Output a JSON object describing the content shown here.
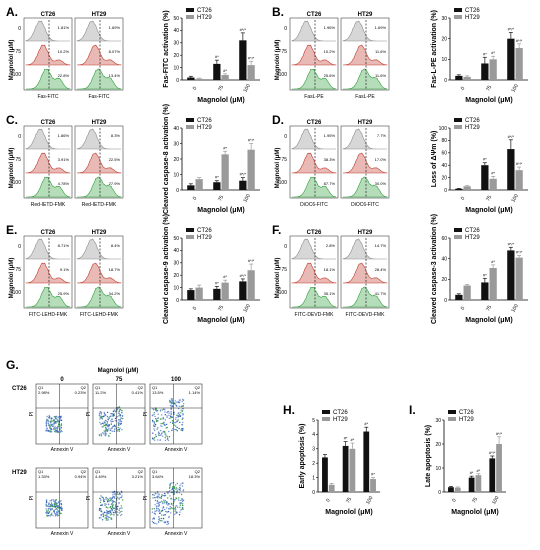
{
  "panel_labels": {
    "A": "A.",
    "B": "B.",
    "C": "C.",
    "D": "D.",
    "E": "E.",
    "F": "F.",
    "G": "G.",
    "H": "H.",
    "I": "I."
  },
  "common": {
    "ct26": "CT26",
    "ht29": "HT29",
    "magnolol": "Magnolol (μM)",
    "magnolol_axis": "Magnolol (μM)",
    "doses": [
      "0",
      "75",
      "100"
    ],
    "star": "#*",
    "star2": "#*/*"
  },
  "colors": {
    "ct26": "#111111",
    "ht29": "#9a9a9a",
    "gray_hist": "#8c8c8c",
    "red_hist": "#c0392b",
    "green_hist": "#2e9e3a"
  },
  "flow_panels": [
    {
      "id": "A",
      "xlabel": "Fas-FITC",
      "pct_ct26": [
        "1.81%",
        "10.2%",
        "22.8%"
      ],
      "pct_ht29": [
        "1.69%",
        "8.07%",
        "13.4%"
      ]
    },
    {
      "id": "B",
      "xlabel": "FasL-PE",
      "pct_ct26": [
        "1.96%",
        "10.2%",
        "25.6%"
      ],
      "pct_ht29": [
        "1.69%",
        "11.6%",
        "11.6%"
      ]
    },
    {
      "id": "C",
      "xlabel": "Red-IETD-FMK",
      "pct_ct26": [
        "1.86%",
        "3.91%",
        "4.78%"
      ],
      "pct_ht29": [
        "8.3%",
        "22.5%",
        "27.9%"
      ]
    },
    {
      "id": "D",
      "xlabel": "DiOC6-FITC",
      "pct_ct26": [
        "1.95%",
        "38.3%",
        "87.7%"
      ],
      "pct_ht29": [
        "7.7%",
        "17.0%",
        "30.0%"
      ]
    },
    {
      "id": "E",
      "xlabel": "FITC-LEHD-FMK",
      "pct_ct26": [
        "8.71%",
        "9.1%",
        "25.9%"
      ],
      "pct_ht29": [
        "8.4%",
        "18.7%",
        "34.2%"
      ]
    },
    {
      "id": "F",
      "xlabel": "FITC-DEVD-FMK",
      "pct_ct26": [
        "2.8%",
        "18.1%",
        "35.1%"
      ],
      "pct_ht29": [
        "14.7%",
        "28.4%",
        "41.7%"
      ]
    }
  ],
  "quad_panel": {
    "title": "Magnolol (μM)",
    "cols": [
      "0",
      "75",
      "100"
    ],
    "rows": [
      "CT26",
      "HT29"
    ],
    "xaxis": "Annexin V",
    "yaxis": "PI",
    "quads": [
      [
        [
          "Q1",
          "Q2",
          "2.98%",
          "0.23%"
        ],
        [
          "Q1",
          "Q2",
          "11.2%",
          "0.41%"
        ],
        [
          "Q1",
          "Q2",
          "13.5%",
          "1.14%"
        ]
      ],
      [
        [
          "Q1",
          "Q2",
          "1.33%",
          "0.94%"
        ],
        [
          "Q1",
          "Q2",
          "4.49%",
          "3.21%"
        ],
        [
          "Q1",
          "Q2",
          "3.64%",
          "18.3%"
        ]
      ]
    ]
  },
  "chart_data": [
    {
      "panel": "A",
      "type": "bar",
      "categories": [
        "0",
        "75",
        "100"
      ],
      "xlabel": "Magnolol (μM)",
      "ylabel": "Fas-FITC activation (%)",
      "ylim": [
        0,
        50
      ],
      "yticks": [
        0,
        10,
        20,
        30,
        40,
        50
      ],
      "series": [
        {
          "name": "CT26",
          "values": [
            2,
            13,
            32
          ],
          "errors": [
            1,
            3,
            6
          ]
        },
        {
          "name": "HT29",
          "values": [
            1,
            4,
            12
          ],
          "errors": [
            0.5,
            1,
            3
          ]
        }
      ],
      "annotations": [
        "#*",
        "#*",
        "#*/*"
      ]
    },
    {
      "panel": "B",
      "type": "bar",
      "categories": [
        "0",
        "75",
        "100"
      ],
      "xlabel": "Magnolol (μM)",
      "ylabel": "Fas-L-PE activation (%)",
      "ylim": [
        0,
        30
      ],
      "yticks": [
        0,
        10,
        20,
        30
      ],
      "series": [
        {
          "name": "CT26",
          "values": [
            2,
            8,
            20
          ],
          "errors": [
            0.5,
            3,
            3
          ]
        },
        {
          "name": "HT29",
          "values": [
            1.5,
            10,
            15.5
          ],
          "errors": [
            0.5,
            1.5,
            2
          ]
        }
      ],
      "annotations": [
        "#*",
        "#*",
        "#*/*"
      ]
    },
    {
      "panel": "C",
      "type": "bar",
      "categories": [
        "0",
        "75",
        "100"
      ],
      "xlabel": "Magnolol (μM)",
      "ylabel": "Cleaved caspase-8 activation (%)",
      "ylim": [
        0,
        40
      ],
      "yticks": [
        0,
        10,
        20,
        30,
        40
      ],
      "series": [
        {
          "name": "CT26",
          "values": [
            3,
            5,
            6
          ],
          "errors": [
            1,
            1,
            2
          ]
        },
        {
          "name": "HT29",
          "values": [
            7,
            23,
            26
          ],
          "errors": [
            1,
            2,
            4
          ]
        }
      ],
      "annotations": [
        "#*",
        "#*",
        "#*/*"
      ]
    },
    {
      "panel": "D",
      "type": "bar",
      "categories": [
        "0",
        "75",
        "100"
      ],
      "xlabel": "Magnolol (μM)",
      "ylabel": "Loss of ΔΨm (%)",
      "ylim": [
        0,
        100
      ],
      "yticks": [
        0,
        20,
        40,
        60,
        80,
        100
      ],
      "series": [
        {
          "name": "CT26",
          "values": [
            2,
            40,
            66
          ],
          "errors": [
            0.5,
            4,
            15
          ]
        },
        {
          "name": "HT29",
          "values": [
            6,
            18,
            32
          ],
          "errors": [
            1,
            4,
            5
          ]
        }
      ],
      "annotations": [
        "#*",
        "#*",
        "#*/*"
      ]
    },
    {
      "panel": "E",
      "type": "bar",
      "categories": [
        "0",
        "75",
        "100"
      ],
      "xlabel": "Magnolol (μM)",
      "ylabel": "Cleaved caspase-9 activation (%)",
      "ylim": [
        0,
        50
      ],
      "yticks": [
        0,
        10,
        20,
        30,
        40,
        50
      ],
      "series": [
        {
          "name": "CT26",
          "values": [
            8,
            9,
            15
          ],
          "errors": [
            1,
            2,
            2
          ]
        },
        {
          "name": "HT29",
          "values": [
            10,
            14,
            24
          ],
          "errors": [
            2,
            2,
            5
          ]
        }
      ],
      "annotations": [
        "#*",
        "#*",
        "#*/*"
      ]
    },
    {
      "panel": "F",
      "type": "bar",
      "categories": [
        "0",
        "75",
        "100"
      ],
      "xlabel": "Magnolol (μM)",
      "ylabel": "Cleaved caspase-3 activation (%)",
      "ylim": [
        0,
        60
      ],
      "yticks": [
        0,
        20,
        40,
        60
      ],
      "series": [
        {
          "name": "CT26",
          "values": [
            5,
            17,
            48
          ],
          "errors": [
            1,
            4,
            3
          ]
        },
        {
          "name": "HT29",
          "values": [
            14,
            31,
            41
          ],
          "errors": [
            1,
            3,
            2
          ]
        }
      ],
      "annotations": [
        "#*",
        "#*",
        "#*/*"
      ]
    },
    {
      "panel": "H",
      "type": "bar",
      "categories": [
        "0",
        "75",
        "100"
      ],
      "xlabel": "Magnolol (μM)",
      "ylabel": "Early apoptosis (%)",
      "ylim": [
        0,
        5
      ],
      "yticks": [
        0,
        1,
        2,
        3,
        4,
        5
      ],
      "series": [
        {
          "name": "CT26",
          "values": [
            2.4,
            3.2,
            4.2
          ],
          "errors": [
            0.2,
            0.3,
            0.3
          ]
        },
        {
          "name": "HT29",
          "values": [
            0.5,
            3.0,
            0.9
          ],
          "errors": [
            0.1,
            0.4,
            0.1
          ]
        }
      ],
      "annotations": [
        "#*",
        "#*",
        "#*"
      ]
    },
    {
      "panel": "I",
      "type": "bar",
      "categories": [
        "0",
        "75",
        "100"
      ],
      "xlabel": "Magnolol (μM)",
      "ylabel": "Late apoptosis (%)",
      "ylim": [
        0,
        30
      ],
      "yticks": [
        0,
        10,
        20,
        30
      ],
      "series": [
        {
          "name": "CT26",
          "values": [
            2,
            6,
            14
          ],
          "errors": [
            0.3,
            0.6,
            1
          ]
        },
        {
          "name": "HT29",
          "values": [
            1.8,
            7,
            20
          ],
          "errors": [
            0.3,
            0.6,
            3
          ]
        }
      ],
      "annotations": [
        "#*",
        "#*",
        "#*/*"
      ]
    }
  ]
}
